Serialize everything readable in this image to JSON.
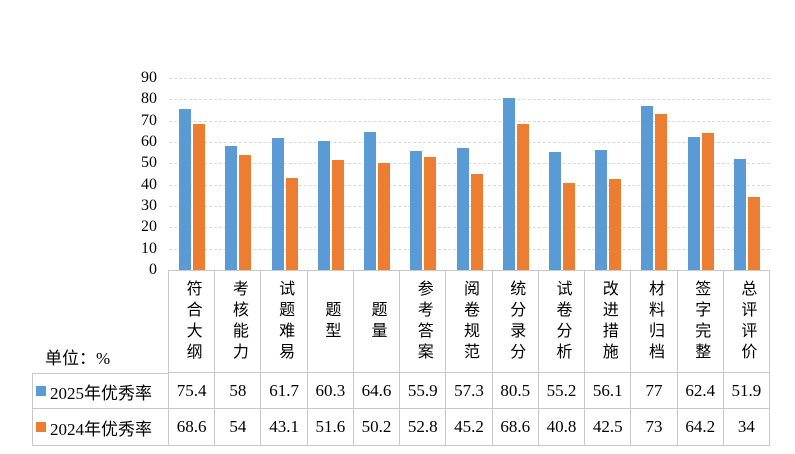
{
  "unit_label": "单位：%",
  "y_axis_ticks": [
    0,
    10,
    20,
    30,
    40,
    50,
    60,
    70,
    80,
    90
  ],
  "colors": {
    "series_2025": "#5B9BD5",
    "series_2024": "#ED7D31",
    "gridline": "#D9D9D9",
    "table_border": "#C9C9C9"
  },
  "chart_data": {
    "type": "bar",
    "title": "",
    "xlabel": "",
    "ylabel": "",
    "unit": "%",
    "ylim": [
      0,
      90
    ],
    "y_tick_step": 10,
    "grid": true,
    "legend_position": "bottom-table",
    "categories": [
      "符合大纲",
      "考核能力",
      "试题难易",
      "题型",
      "题量",
      "参考答案",
      "阅卷规范",
      "统分录分",
      "试卷分析",
      "改进措施",
      "材料归档",
      "签字完整",
      "总评评价"
    ],
    "series": [
      {
        "name": "2025年优秀率",
        "color": "#5B9BD5",
        "values": [
          75.4,
          58,
          61.7,
          60.3,
          64.6,
          55.9,
          57.3,
          80.5,
          55.2,
          56.1,
          77,
          62.4,
          51.9
        ]
      },
      {
        "name": "2024年优秀率",
        "color": "#ED7D31",
        "values": [
          68.6,
          54,
          43.1,
          51.6,
          50.2,
          52.8,
          45.2,
          68.6,
          40.8,
          42.5,
          73,
          64.2,
          34
        ]
      }
    ]
  }
}
